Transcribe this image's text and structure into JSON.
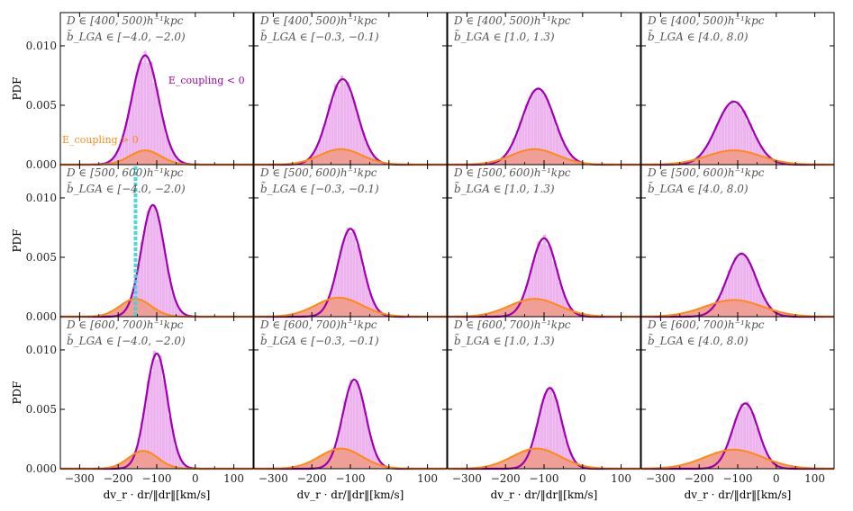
{
  "chart_data": {
    "type": "histogram-grid",
    "rows": 3,
    "cols": 4,
    "ylabel": "PDF",
    "xlabel": "dv_r · dr/‖dr‖[km/s]",
    "xlim": [
      -350,
      150
    ],
    "ylim": [
      0,
      0.0128
    ],
    "xticks": [
      -300,
      -200,
      -100,
      0,
      100
    ],
    "xtick_labels": [
      "−300",
      "−200",
      "−100",
      "0",
      "100"
    ],
    "yticks": [
      0,
      0.005,
      0.01
    ],
    "ytick_labels": [
      "0.000",
      "0.005",
      "0.010"
    ],
    "colors": {
      "negative_line": "#a000b0",
      "negative_fill": "#e9a6ec",
      "positive_line": "#ff8a12",
      "positive_fill": "#ef9d8e",
      "positive_hist": "#f9c98a",
      "annotation_line": "#38d7d7"
    },
    "legend": {
      "negative": "E_coupling < 0",
      "positive": "E_coupling > 0"
    },
    "row_labels": [
      "D ∈ [400, 500)h⁻¹kpc",
      "D ∈ [500, 600)h⁻¹kpc",
      "D ∈ [600, 700)h⁻¹kpc"
    ],
    "col_labels": [
      "b̃_LGA ∈ [−4.0, −2.0)",
      "b̃_LGA ∈ [−0.3, −0.1)",
      "b̃_LGA ∈ [1.0, 1.3)",
      "b̃_LGA ∈ [4.0, 8.0)"
    ],
    "vertical_marker": {
      "panel": [
        1,
        0
      ],
      "x": -155
    },
    "panels": [
      [
        {
          "neg": {
            "mu": -130,
            "sigma": 35,
            "amp": 0.0092
          },
          "pos": {
            "mu": -130,
            "sigma": 40,
            "amp": 0.0012
          }
        },
        {
          "neg": {
            "mu": -120,
            "sigma": 38,
            "amp": 0.0072
          },
          "pos": {
            "mu": -125,
            "sigma": 55,
            "amp": 0.0013
          }
        },
        {
          "neg": {
            "mu": -115,
            "sigma": 42,
            "amp": 0.0064
          },
          "pos": {
            "mu": -125,
            "sigma": 60,
            "amp": 0.0013
          }
        },
        {
          "neg": {
            "mu": -110,
            "sigma": 45,
            "amp": 0.0053
          },
          "pos": {
            "mu": -110,
            "sigma": 70,
            "amp": 0.0012
          }
        }
      ],
      [
        {
          "neg": {
            "mu": -110,
            "sigma": 30,
            "amp": 0.0094
          },
          "pos": {
            "mu": -155,
            "sigma": 40,
            "amp": 0.0015
          }
        },
        {
          "neg": {
            "mu": -100,
            "sigma": 32,
            "amp": 0.0074
          },
          "pos": {
            "mu": -130,
            "sigma": 60,
            "amp": 0.0016
          }
        },
        {
          "neg": {
            "mu": -100,
            "sigma": 33,
            "amp": 0.0066
          },
          "pos": {
            "mu": -125,
            "sigma": 65,
            "amp": 0.0015
          }
        },
        {
          "neg": {
            "mu": -90,
            "sigma": 38,
            "amp": 0.0053
          },
          "pos": {
            "mu": -110,
            "sigma": 75,
            "amp": 0.0014
          }
        }
      ],
      [
        {
          "neg": {
            "mu": -100,
            "sigma": 28,
            "amp": 0.0097
          },
          "pos": {
            "mu": -135,
            "sigma": 38,
            "amp": 0.0015
          }
        },
        {
          "neg": {
            "mu": -90,
            "sigma": 30,
            "amp": 0.0075
          },
          "pos": {
            "mu": -125,
            "sigma": 55,
            "amp": 0.0017
          }
        },
        {
          "neg": {
            "mu": -85,
            "sigma": 30,
            "amp": 0.0068
          },
          "pos": {
            "mu": -120,
            "sigma": 62,
            "amp": 0.0017
          }
        },
        {
          "neg": {
            "mu": -80,
            "sigma": 33,
            "amp": 0.0055
          },
          "pos": {
            "mu": -110,
            "sigma": 75,
            "amp": 0.0016
          }
        }
      ]
    ]
  }
}
